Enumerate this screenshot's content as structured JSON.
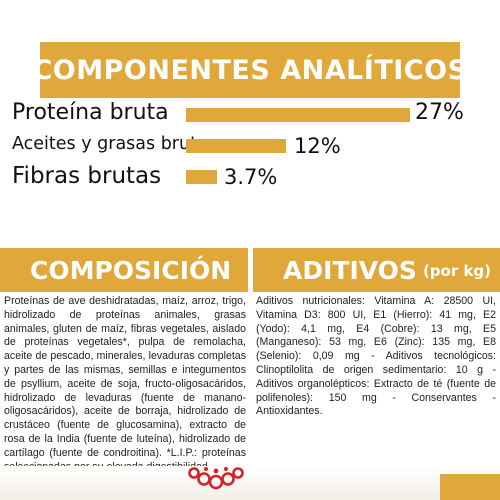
{
  "top_banner": {
    "title": "COMPONENTES ANALÍTICOS"
  },
  "nutrients": [
    {
      "label": "Proteína bruta",
      "value": "27%",
      "percent": 27
    },
    {
      "label": "Aceites y grasas brutos",
      "value": "12%",
      "percent": 12
    },
    {
      "label": "Fibras brutas",
      "value": "3.7%",
      "percent": 3.7
    }
  ],
  "composicion": {
    "title": "COMPOSICIÓN",
    "text": "Proteínas de ave deshidratadas, maíz, arroz, trigo, hidrolizado de proteínas animales, grasas animales, gluten de maíz, fibras vegetales, aislado de proteínas vegetales*, pulpa de remolacha, aceite de pescado, minerales, levaduras completas y partes de las mismas, semillas e integumentos de psyllium, aceite de soja, fructo-oligosacáridos, hidrolizado de levaduras (fuente de manano-oligosacáridos), aceite de borraja, hidrolizado de crustáceo (fuente de glucosamina), extracto de rosa de la India (fuente de luteína), hidrolizado de cartílago (fuente de condroitina). *L.I.P.: proteínas seleccionadas por su elevada digestibilidad."
  },
  "aditivos": {
    "title": "ADITIVOS",
    "unit": "(por kg)",
    "text": "Aditivos nutricionales: Vitamina A: 28500 UI, Vitamina D3: 800 UI, E1 (Hierro): 41 mg, E2 (Yodo): 4,1 mg, E4 (Cobre): 13 mg, E5 (Manganeso): 53 mg, E6 (Zinc): 135 mg, E8 (Selenio): 0,09 mg - Aditivos tecnológicos: Clinoptilolita de origen sedimentario: 10 g - Aditivos organolépticos: Extracto de té (fuente de polifenoles): 150 mg - Conservantes - Antioxidantes."
  },
  "colors": {
    "accent": "#e0a83a",
    "brand_red": "#d2232a"
  },
  "logo": {
    "icon": "royal-canin-crown-logo"
  }
}
